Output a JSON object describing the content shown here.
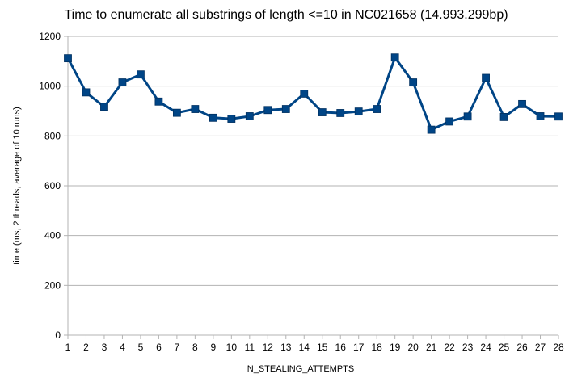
{
  "chart_data": {
    "type": "line",
    "title": "Time to enumerate all substrings of length <=10 in NC021658 (14.993.299bp)",
    "xlabel": "N_STEALING_ATTEMPTS",
    "ylabel": "time (ms,  2  threads,  average  of  10  runs)",
    "categories": [
      "1",
      "2",
      "3",
      "4",
      "5",
      "6",
      "7",
      "8",
      "9",
      "10",
      "11",
      "12",
      "13",
      "14",
      "15",
      "16",
      "17",
      "18",
      "19",
      "20",
      "21",
      "22",
      "23",
      "24",
      "25",
      "26",
      "27",
      "28"
    ],
    "series": [
      {
        "values": [
          1112,
          975,
          917,
          1015,
          1047,
          938,
          893,
          908,
          873,
          869,
          879,
          904,
          908,
          970,
          895,
          892,
          898,
          908,
          1115,
          1015,
          825,
          858,
          878,
          1033,
          876,
          928,
          879,
          878
        ]
      }
    ],
    "yticks": [
      0,
      200,
      400,
      600,
      800,
      1000,
      1200
    ],
    "ylim": [
      0,
      1200
    ],
    "grid": true,
    "legend": "none",
    "colors": {
      "line": "#004586",
      "marker": "#004586",
      "grid": "#b3b3b3",
      "axis": "#b3b3b3"
    }
  }
}
